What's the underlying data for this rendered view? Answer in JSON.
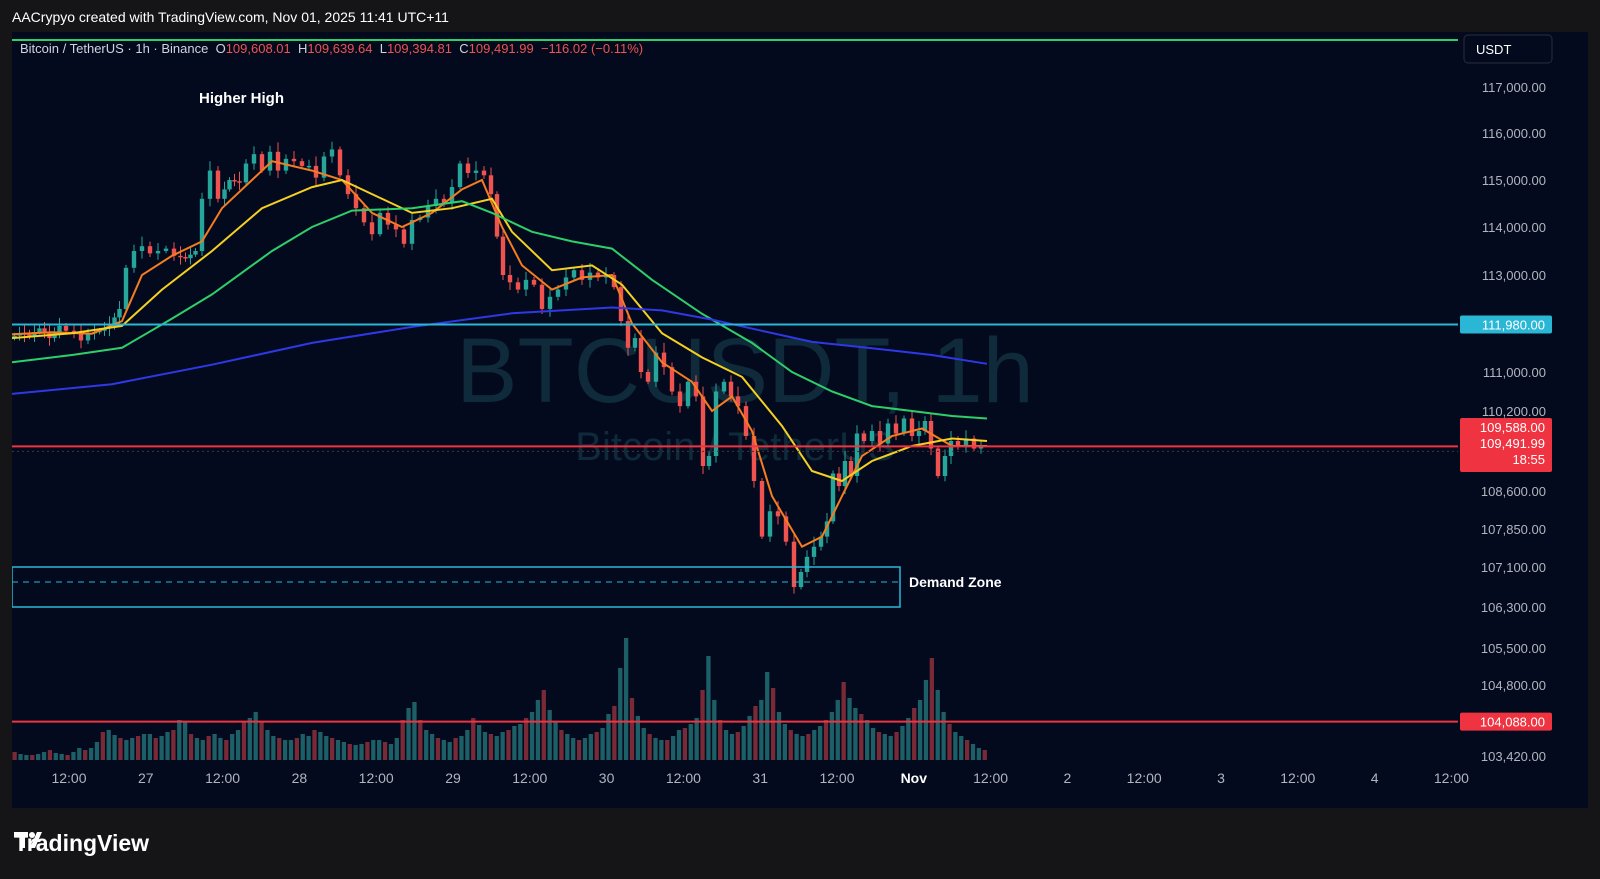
{
  "header": {
    "caption": "AACrypyo created with TradingView.com, Nov 01, 2025 11:41 UTC+11"
  },
  "legend": {
    "symbol": "Bitcoin / TetherUS · 1h · Binance",
    "o_label": "O",
    "o": "109,608.01",
    "h_label": "H",
    "h": "109,639.64",
    "l_label": "L",
    "l": "109,394.81",
    "c_label": "C",
    "c": "109,491.99",
    "change": "−116.02 (−0.11%)"
  },
  "currency": "USDT",
  "watermark": {
    "big": "BTCUSDT, 1h",
    "small": "Bitcoin / TetherUS"
  },
  "annotations": {
    "higher_high": "Higher High",
    "demand_zone": "Demand Zone"
  },
  "price_tags": {
    "upper_level": "111,980.00",
    "bid": "109,588.00",
    "last": "109,491.99",
    "countdown": "18:55",
    "lower_level": "104,088.00"
  },
  "brand": "TradingView",
  "colors": {
    "bull": "#26a69a",
    "bear": "#ef5350",
    "level_cyan": "#2ab7d6",
    "level_red": "#ef3340",
    "ma_fast": "#f57c1f",
    "ma_mid": "#f5d020",
    "ma_slow": "#2ecf6a",
    "ma_long": "#2f38e6"
  },
  "chart_data": {
    "type": "candlestick",
    "title": "Bitcoin / TetherUS · 1h · Binance",
    "y_ticks": [
      "117,000.00",
      "116,000.00",
      "115,000.00",
      "114,000.00",
      "113,000.00",
      "111,000.00",
      "110,200.00",
      "108,600.00",
      "107,850.00",
      "107,100.00",
      "106,300.00",
      "105,500.00",
      "104,800.00",
      "103,420.00"
    ],
    "x_ticks": [
      "12:00",
      "27",
      "12:00",
      "28",
      "12:00",
      "29",
      "12:00",
      "30",
      "12:00",
      "31",
      "12:00",
      "Nov",
      "12:00",
      "2",
      "12:00",
      "3",
      "12:00",
      "4",
      "12:00"
    ],
    "ohlc_path": [
      [
        0,
        111700
      ],
      [
        10,
        111800
      ],
      [
        20,
        111750
      ],
      [
        30,
        111900
      ],
      [
        40,
        111700
      ],
      [
        50,
        111950
      ],
      [
        58,
        111850
      ],
      [
        66,
        111800
      ],
      [
        72,
        111650
      ],
      [
        80,
        111800
      ],
      [
        90,
        111850
      ],
      [
        100,
        111950
      ],
      [
        110,
        112300
      ],
      [
        118,
        113150
      ],
      [
        126,
        113500
      ],
      [
        134,
        113600
      ],
      [
        142,
        113450
      ],
      [
        150,
        113500
      ],
      [
        158,
        113550
      ],
      [
        166,
        113400
      ],
      [
        176,
        113350
      ],
      [
        186,
        113500
      ],
      [
        194,
        114600
      ],
      [
        202,
        115200
      ],
      [
        210,
        114600
      ],
      [
        220,
        115000
      ],
      [
        230,
        114950
      ],
      [
        238,
        115350
      ],
      [
        246,
        115550
      ],
      [
        254,
        115200
      ],
      [
        262,
        115600
      ],
      [
        270,
        115200
      ],
      [
        278,
        115450
      ],
      [
        286,
        115400
      ],
      [
        294,
        115300
      ],
      [
        300,
        115300
      ],
      [
        308,
        115050
      ],
      [
        316,
        115500
      ],
      [
        324,
        115650
      ],
      [
        332,
        115100
      ],
      [
        340,
        114700
      ],
      [
        348,
        114400
      ],
      [
        356,
        114100
      ],
      [
        364,
        113850
      ],
      [
        372,
        114300
      ],
      [
        380,
        114050
      ],
      [
        388,
        113950
      ],
      [
        396,
        113650
      ],
      [
        404,
        114150
      ],
      [
        412,
        114200
      ],
      [
        420,
        114450
      ],
      [
        428,
        114600
      ],
      [
        436,
        114500
      ],
      [
        444,
        114850
      ],
      [
        452,
        115350
      ],
      [
        460,
        115150
      ],
      [
        468,
        115200
      ],
      [
        476,
        115100
      ],
      [
        482,
        114700
      ],
      [
        488,
        113800
      ],
      [
        494,
        113000
      ],
      [
        502,
        112850
      ],
      [
        510,
        112700
      ],
      [
        518,
        112900
      ],
      [
        526,
        112800
      ],
      [
        534,
        112300
      ],
      [
        542,
        112550
      ],
      [
        550,
        112700
      ],
      [
        558,
        112950
      ],
      [
        566,
        113100
      ],
      [
        574,
        112900
      ],
      [
        582,
        113050
      ],
      [
        590,
        112950
      ],
      [
        598,
        113000
      ],
      [
        606,
        112750
      ],
      [
        612,
        112050
      ],
      [
        620,
        111500
      ],
      [
        626,
        111700
      ],
      [
        632,
        111000
      ],
      [
        640,
        110800
      ],
      [
        648,
        111400
      ],
      [
        656,
        111100
      ],
      [
        664,
        110600
      ],
      [
        672,
        110300
      ],
      [
        680,
        110800
      ],
      [
        688,
        110500
      ],
      [
        694,
        109100
      ],
      [
        700,
        109300
      ],
      [
        708,
        110600
      ],
      [
        716,
        110800
      ],
      [
        722,
        110500
      ],
      [
        730,
        110300
      ],
      [
        738,
        109700
      ],
      [
        746,
        108800
      ],
      [
        754,
        107700
      ],
      [
        762,
        108200
      ],
      [
        770,
        108100
      ],
      [
        778,
        107600
      ],
      [
        786,
        106700
      ],
      [
        792,
        107000
      ],
      [
        798,
        107300
      ],
      [
        806,
        107500
      ],
      [
        812,
        107700
      ],
      [
        818,
        108000
      ],
      [
        824,
        108950
      ],
      [
        830,
        108700
      ],
      [
        836,
        109200
      ],
      [
        842,
        108900
      ],
      [
        848,
        109750
      ],
      [
        856,
        109600
      ],
      [
        864,
        109800
      ],
      [
        872,
        109550
      ],
      [
        880,
        109950
      ],
      [
        888,
        109750
      ],
      [
        896,
        110050
      ],
      [
        904,
        109700
      ],
      [
        910,
        109800
      ],
      [
        916,
        110000
      ],
      [
        922,
        109450
      ],
      [
        930,
        108900
      ],
      [
        936,
        109300
      ],
      [
        942,
        109600
      ],
      [
        950,
        109500
      ],
      [
        958,
        109650
      ],
      [
        966,
        109450
      ],
      [
        972,
        109490
      ]
    ],
    "moving_averages": [
      {
        "role": "fast",
        "points": [
          [
            0,
            111780
          ],
          [
            40,
            111820
          ],
          [
            80,
            111790
          ],
          [
            110,
            112050
          ],
          [
            130,
            113000
          ],
          [
            160,
            113400
          ],
          [
            190,
            113700
          ],
          [
            210,
            114400
          ],
          [
            240,
            115000
          ],
          [
            260,
            115400
          ],
          [
            300,
            115200
          ],
          [
            330,
            115000
          ],
          [
            360,
            114300
          ],
          [
            390,
            114000
          ],
          [
            420,
            114300
          ],
          [
            450,
            114800
          ],
          [
            470,
            115000
          ],
          [
            490,
            114000
          ],
          [
            510,
            113200
          ],
          [
            540,
            112700
          ],
          [
            570,
            112950
          ],
          [
            600,
            113000
          ],
          [
            620,
            112000
          ],
          [
            650,
            111200
          ],
          [
            680,
            110800
          ],
          [
            700,
            110200
          ],
          [
            720,
            110500
          ],
          [
            740,
            109800
          ],
          [
            760,
            108500
          ],
          [
            790,
            107500
          ],
          [
            810,
            107700
          ],
          [
            830,
            108500
          ],
          [
            850,
            109300
          ],
          [
            880,
            109700
          ],
          [
            910,
            109850
          ],
          [
            940,
            109500
          ],
          [
            975,
            109500
          ]
        ]
      },
      {
        "role": "mid",
        "points": [
          [
            0,
            111700
          ],
          [
            60,
            111800
          ],
          [
            110,
            111950
          ],
          [
            150,
            112700
          ],
          [
            200,
            113500
          ],
          [
            250,
            114400
          ],
          [
            300,
            114850
          ],
          [
            330,
            115000
          ],
          [
            360,
            114700
          ],
          [
            400,
            114300
          ],
          [
            440,
            114400
          ],
          [
            480,
            114600
          ],
          [
            500,
            113900
          ],
          [
            540,
            113100
          ],
          [
            580,
            113200
          ],
          [
            610,
            112800
          ],
          [
            650,
            111800
          ],
          [
            690,
            111300
          ],
          [
            730,
            110900
          ],
          [
            770,
            109900
          ],
          [
            800,
            109000
          ],
          [
            830,
            108800
          ],
          [
            860,
            109200
          ],
          [
            900,
            109500
          ],
          [
            940,
            109650
          ],
          [
            975,
            109600
          ]
        ]
      },
      {
        "role": "slow",
        "points": [
          [
            0,
            111200
          ],
          [
            60,
            111350
          ],
          [
            110,
            111500
          ],
          [
            160,
            112100
          ],
          [
            200,
            112600
          ],
          [
            260,
            113500
          ],
          [
            300,
            114000
          ],
          [
            340,
            114350
          ],
          [
            400,
            114400
          ],
          [
            450,
            114550
          ],
          [
            480,
            114300
          ],
          [
            520,
            113900
          ],
          [
            560,
            113700
          ],
          [
            600,
            113550
          ],
          [
            640,
            112900
          ],
          [
            690,
            112200
          ],
          [
            740,
            111600
          ],
          [
            780,
            111000
          ],
          [
            820,
            110600
          ],
          [
            860,
            110300
          ],
          [
            900,
            110200
          ],
          [
            940,
            110100
          ],
          [
            975,
            110050
          ]
        ]
      },
      {
        "role": "long",
        "points": [
          [
            0,
            110550
          ],
          [
            100,
            110750
          ],
          [
            200,
            111150
          ],
          [
            300,
            111600
          ],
          [
            400,
            111930
          ],
          [
            500,
            112210
          ],
          [
            600,
            112330
          ],
          [
            650,
            112270
          ],
          [
            700,
            112080
          ],
          [
            750,
            111850
          ],
          [
            800,
            111620
          ],
          [
            860,
            111490
          ],
          [
            920,
            111350
          ],
          [
            975,
            111170
          ]
        ]
      }
    ],
    "volumes": [
      8,
      6,
      5,
      5,
      6,
      8,
      10,
      7,
      6,
      5,
      8,
      12,
      10,
      12,
      18,
      28,
      30,
      25,
      22,
      20,
      22,
      24,
      26,
      26,
      22,
      24,
      28,
      30,
      40,
      38,
      26,
      22,
      20,
      24,
      26,
      22,
      20,
      26,
      30,
      38,
      42,
      48,
      38,
      30,
      24,
      22,
      20,
      20,
      22,
      26,
      24,
      30,
      28,
      24,
      22,
      20,
      18,
      16,
      15,
      16,
      18,
      20,
      20,
      18,
      16,
      22,
      40,
      52,
      58,
      40,
      30,
      26,
      22,
      20,
      18,
      22,
      24,
      30,
      42,
      35,
      28,
      26,
      24,
      28,
      30,
      34,
      36,
      42,
      48,
      60,
      70,
      50,
      38,
      30,
      26,
      22,
      20,
      22,
      26,
      28,
      32,
      46,
      54,
      92,
      122,
      62,
      44,
      32,
      26,
      22,
      20,
      20,
      24,
      30,
      32,
      36,
      42,
      70,
      104,
      60,
      40,
      30,
      26,
      28,
      34,
      44,
      54,
      60,
      88,
      72,
      48,
      36,
      30,
      26,
      24,
      26,
      30,
      34,
      40,
      48,
      60,
      78,
      62,
      52,
      46,
      40,
      32,
      28,
      26,
      24,
      28,
      34,
      42,
      52,
      60,
      80,
      102,
      70,
      48,
      36,
      28,
      24,
      20,
      16,
      12,
      10
    ],
    "levels": [
      {
        "price": 111980,
        "label": "111,980.00"
      },
      {
        "price": 109491.99,
        "label": "109,491.99"
      },
      {
        "price": 104088,
        "label": "104,088.00"
      }
    ],
    "demand_zone": {
      "top": 107100,
      "bottom": 106300,
      "mid": 106800
    },
    "ylim": [
      103000,
      117400
    ]
  }
}
